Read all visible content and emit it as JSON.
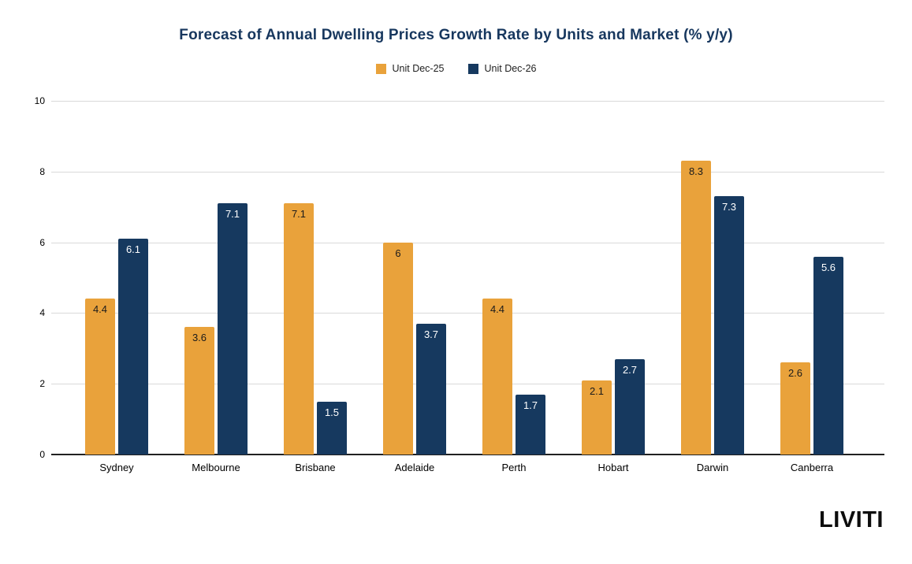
{
  "page": {
    "background": "#ffffff"
  },
  "branding": {
    "logo_text": "LIVITI"
  },
  "chart_data": {
    "type": "bar",
    "title": "Forecast of Annual Dwelling Prices Growth Rate by Units and Market (% y/y)",
    "title_color": "#17375E",
    "categories": [
      "Sydney",
      "Melbourne",
      "Brisbane",
      "Adelaide",
      "Perth",
      "Hobart",
      "Darwin",
      "Canberra"
    ],
    "series": [
      {
        "name": "Unit Dec-25",
        "color": "#E9A23B",
        "label_color": "#1b1b1b",
        "values": [
          4.4,
          3.6,
          7.1,
          6,
          4.4,
          2.1,
          8.3,
          2.6
        ]
      },
      {
        "name": "Unit Dec-26",
        "color": "#16395F",
        "label_color": "#ffffff",
        "values": [
          6.1,
          7.1,
          1.5,
          3.7,
          1.7,
          2.7,
          7.3,
          5.6
        ]
      }
    ],
    "xlabel": "",
    "ylabel": "",
    "ylim": [
      0,
      10
    ],
    "yticks": [
      0,
      2,
      4,
      6,
      8,
      10
    ],
    "grid": true,
    "legend_position": "top",
    "data_labels": "inside-top",
    "gridline_color": "#d9d9d9",
    "axis_line_color": "#212121"
  }
}
